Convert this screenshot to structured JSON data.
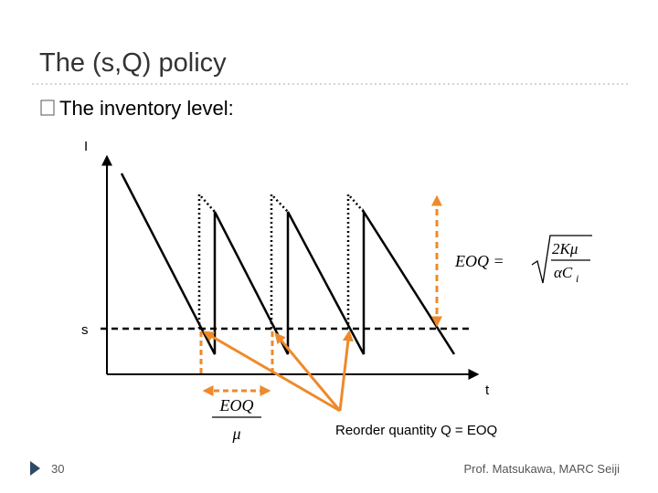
{
  "slide": {
    "title": "The (s,Q) policy",
    "bullet": "The inventory level:",
    "diagram": {
      "y_axis_label": "I",
      "reorder_level_label": "s",
      "x_axis_label": "t",
      "formula": {
        "lhs": "EOQ = ",
        "numerator": "2Kμ",
        "denominator": "αC",
        "subscript": "i"
      },
      "cycle_formula": {
        "numerator": "EOQ",
        "denominator": "μ"
      },
      "annotation": "Reorder quantity Q = EOQ"
    },
    "page_number": "30",
    "footer": "Prof. Matsukawa, MARC Seiji"
  }
}
